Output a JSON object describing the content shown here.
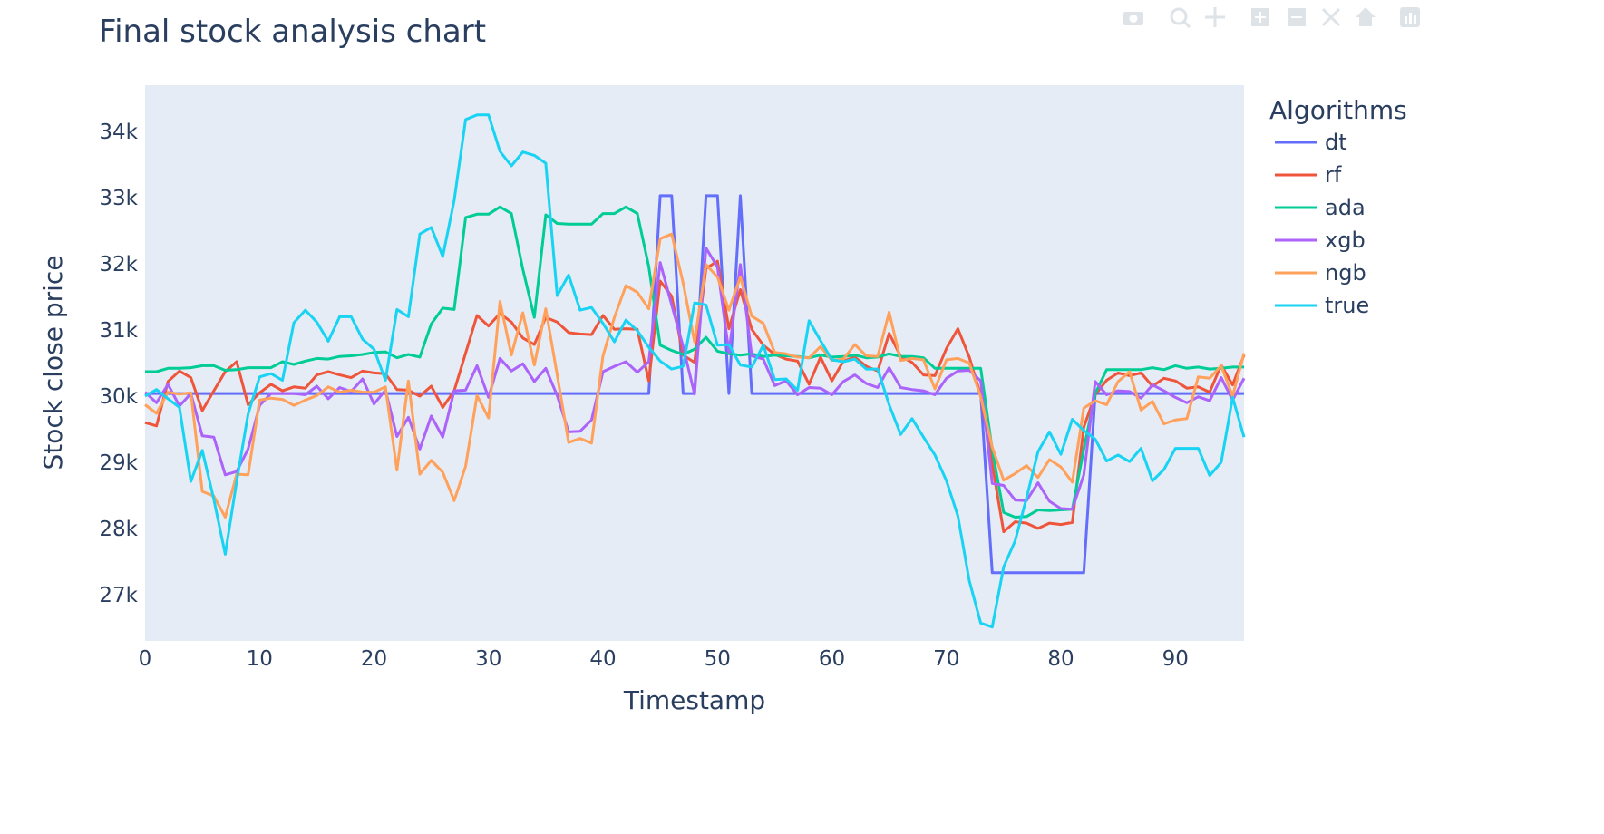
{
  "chart_data": {
    "type": "line",
    "title": "Final stock analysis chart",
    "xlabel": "Timestamp",
    "ylabel": "Stock close price",
    "legend_title": "Algorithms",
    "legend_position": "right",
    "xlim": [
      0,
      96
    ],
    "ylim": [
      26300,
      34700
    ],
    "x_ticks": [
      0,
      10,
      20,
      30,
      40,
      50,
      60,
      70,
      80,
      90
    ],
    "x_tick_labels": [
      "0",
      "10",
      "20",
      "30",
      "40",
      "50",
      "60",
      "70",
      "80",
      "90"
    ],
    "y_ticks": [
      27000,
      28000,
      29000,
      30000,
      31000,
      32000,
      33000,
      34000
    ],
    "y_tick_labels": [
      "27k",
      "28k",
      "29k",
      "30k",
      "31k",
      "32k",
      "33k",
      "34k"
    ],
    "grid": false,
    "x": [
      0,
      1,
      2,
      3,
      4,
      5,
      6,
      7,
      8,
      9,
      10,
      11,
      12,
      13,
      14,
      15,
      16,
      17,
      18,
      19,
      20,
      21,
      22,
      23,
      24,
      25,
      26,
      27,
      28,
      29,
      30,
      31,
      32,
      33,
      34,
      35,
      36,
      37,
      38,
      39,
      40,
      41,
      42,
      43,
      44,
      45,
      46,
      47,
      48,
      49,
      50,
      51,
      52,
      53,
      54,
      55,
      56,
      57,
      58,
      59,
      60,
      61,
      62,
      63,
      64,
      65,
      66,
      67,
      68,
      69,
      70,
      71,
      72,
      73,
      74,
      75,
      76,
      77,
      78,
      79,
      80,
      81,
      82,
      83,
      84,
      85,
      86,
      87,
      88,
      89,
      90,
      91,
      92,
      93,
      94,
      95,
      96
    ],
    "series": [
      {
        "name": "dt",
        "color": "#636efa",
        "values": [
          30040,
          30040,
          30040,
          30040,
          30040,
          30040,
          30040,
          30040,
          30040,
          30040,
          30040,
          30040,
          30040,
          30040,
          30040,
          30040,
          30040,
          30040,
          30040,
          30040,
          30040,
          30040,
          30040,
          30040,
          30040,
          30040,
          30040,
          30040,
          30040,
          30040,
          30040,
          30040,
          30040,
          30040,
          30040,
          30040,
          30040,
          30040,
          30040,
          30040,
          30040,
          30040,
          30040,
          30040,
          30040,
          33030,
          33030,
          30040,
          30040,
          33030,
          33030,
          30040,
          33030,
          30040,
          30040,
          30040,
          30040,
          30040,
          30040,
          30040,
          30040,
          30040,
          30040,
          30040,
          30040,
          30040,
          30040,
          30040,
          30040,
          30040,
          30040,
          30040,
          30040,
          30040,
          27330,
          27330,
          27330,
          27330,
          27330,
          27330,
          27330,
          27330,
          27330,
          30040,
          30040,
          30040,
          30040,
          30040,
          30040,
          30040,
          30040,
          30040,
          30040,
          30040,
          30040,
          30040,
          30040
        ]
      },
      {
        "name": "rf",
        "color": "#ef553b",
        "values": [
          29600,
          29550,
          30220,
          30380,
          30280,
          29780,
          30080,
          30370,
          30520,
          29870,
          30050,
          30180,
          30080,
          30140,
          30120,
          30320,
          30370,
          30320,
          30280,
          30380,
          30350,
          30340,
          30100,
          30090,
          30000,
          30150,
          29830,
          30080,
          30650,
          31220,
          31060,
          31250,
          31120,
          30880,
          30780,
          31190,
          31120,
          30960,
          30940,
          30930,
          31220,
          31010,
          31020,
          31010,
          30230,
          31740,
          31510,
          30620,
          30510,
          31930,
          32040,
          31020,
          31610,
          31010,
          30770,
          30630,
          30560,
          30530,
          30180,
          30590,
          30230,
          30530,
          30590,
          30450,
          30380,
          30950,
          30600,
          30510,
          30320,
          30310,
          30720,
          31020,
          30590,
          30010,
          28970,
          27950,
          28100,
          28080,
          28000,
          28080,
          28060,
          28090,
          29530,
          30020,
          30240,
          30350,
          30310,
          30350,
          30150,
          30270,
          30230,
          30120,
          30140,
          30060,
          30470,
          30170,
          30620
        ]
      },
      {
        "name": "ada",
        "color": "#00cc96",
        "values": [
          30370,
          30370,
          30420,
          30420,
          30430,
          30460,
          30460,
          30390,
          30400,
          30430,
          30430,
          30430,
          30520,
          30480,
          30530,
          30570,
          30560,
          30600,
          30610,
          30630,
          30660,
          30670,
          30580,
          30630,
          30590,
          31090,
          31330,
          31310,
          32700,
          32750,
          32750,
          32860,
          32760,
          31920,
          31190,
          32740,
          32610,
          32600,
          32600,
          32600,
          32760,
          32760,
          32860,
          32760,
          31960,
          30770,
          30690,
          30630,
          30710,
          30890,
          30680,
          30640,
          30620,
          30640,
          30600,
          30620,
          30610,
          30600,
          30580,
          30620,
          30590,
          30600,
          30620,
          30580,
          30590,
          30640,
          30600,
          30600,
          30580,
          30420,
          30420,
          30420,
          30420,
          30420,
          29190,
          28240,
          28170,
          28180,
          28280,
          28270,
          28280,
          28290,
          29200,
          30040,
          30400,
          30400,
          30400,
          30400,
          30430,
          30400,
          30460,
          30420,
          30440,
          30410,
          30420,
          30440,
          30440
        ]
      },
      {
        "name": "xgb",
        "color": "#ab63fa",
        "values": [
          30060,
          29900,
          30180,
          29850,
          30040,
          29400,
          29380,
          28810,
          28860,
          29200,
          29860,
          30040,
          30040,
          30040,
          30020,
          30150,
          29960,
          30130,
          30070,
          30260,
          29880,
          30090,
          29390,
          29680,
          29200,
          29700,
          29380,
          30080,
          30090,
          30460,
          29980,
          30570,
          30380,
          30490,
          30220,
          30420,
          30010,
          29460,
          29470,
          29640,
          30370,
          30450,
          30520,
          30360,
          30520,
          32020,
          31380,
          30750,
          30030,
          32240,
          31950,
          30660,
          31990,
          30610,
          30560,
          30160,
          30230,
          30020,
          30130,
          30120,
          30020,
          30220,
          30320,
          30190,
          30130,
          30430,
          30130,
          30100,
          30080,
          30020,
          30270,
          30380,
          30390,
          30230,
          28680,
          28650,
          28430,
          28420,
          28690,
          28410,
          28300,
          28290,
          28810,
          30220,
          30020,
          30080,
          30070,
          29970,
          30170,
          30080,
          29980,
          29900,
          29990,
          29930,
          30280,
          29940,
          30270
        ]
      },
      {
        "name": "ngb",
        "color": "#ffa15a",
        "values": [
          29870,
          29740,
          30060,
          30030,
          30050,
          28560,
          28490,
          28170,
          28820,
          28810,
          29940,
          29970,
          29950,
          29860,
          29940,
          30010,
          30140,
          30060,
          30090,
          30060,
          30060,
          30140,
          28880,
          30230,
          28820,
          29030,
          28850,
          28420,
          28940,
          30010,
          29670,
          31430,
          30620,
          31260,
          30470,
          31320,
          30320,
          29300,
          29360,
          29290,
          30610,
          31190,
          31670,
          31570,
          31320,
          32380,
          32450,
          31710,
          30820,
          31990,
          31800,
          31300,
          31800,
          31210,
          31100,
          30660,
          30640,
          30590,
          30580,
          30750,
          30540,
          30560,
          30780,
          30610,
          30600,
          31270,
          30540,
          30570,
          30550,
          30110,
          30550,
          30570,
          30500,
          29990,
          29230,
          28730,
          28830,
          28950,
          28770,
          29040,
          28930,
          28700,
          29820,
          29930,
          29870,
          30220,
          30370,
          29790,
          29920,
          29580,
          29640,
          29660,
          30290,
          30270,
          30460,
          30000,
          30650
        ]
      },
      {
        "name": "true",
        "color": "#19d3f3",
        "values": [
          30000,
          30100,
          29960,
          29830,
          28710,
          29180,
          28440,
          27610,
          28710,
          29730,
          30290,
          30340,
          30240,
          31110,
          31300,
          31120,
          30830,
          31200,
          31200,
          30860,
          30710,
          30240,
          31310,
          31200,
          32450,
          32550,
          32110,
          32960,
          34180,
          34250,
          34250,
          33700,
          33480,
          33690,
          33640,
          33520,
          31520,
          31830,
          31300,
          31340,
          31100,
          30820,
          31150,
          30990,
          30740,
          30530,
          30410,
          30450,
          31410,
          31380,
          30770,
          30780,
          30470,
          30440,
          30770,
          30250,
          30260,
          30090,
          31140,
          30840,
          30550,
          30520,
          30560,
          30410,
          30410,
          29870,
          29420,
          29660,
          29380,
          29110,
          28720,
          28190,
          27210,
          26570,
          26510,
          27420,
          27810,
          28460,
          29160,
          29460,
          29120,
          29650,
          29480,
          29350,
          29020,
          29110,
          29010,
          29210,
          28720,
          28890,
          29210,
          29210,
          29210,
          28800,
          29000,
          29980,
          29380
        ]
      }
    ]
  }
}
